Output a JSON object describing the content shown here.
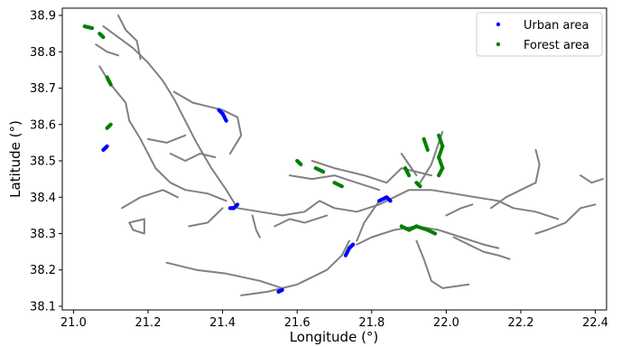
{
  "chart_data": {
    "type": "scatter",
    "title": "",
    "xlabel": "Longitude (°)",
    "ylabel": "Latitude (°)",
    "xlim": [
      20.97,
      22.43
    ],
    "ylim": [
      38.09,
      38.92
    ],
    "xticks": [
      "21.0",
      "21.2",
      "21.4",
      "21.6",
      "21.8",
      "22.0",
      "22.2",
      "22.4"
    ],
    "xtick_values": [
      21.0,
      21.2,
      21.4,
      21.6,
      21.8,
      22.0,
      22.2,
      22.4
    ],
    "yticks": [
      "38.1",
      "38.2",
      "38.3",
      "38.4",
      "38.5",
      "38.6",
      "38.7",
      "38.8",
      "38.9"
    ],
    "ytick_values": [
      38.1,
      38.2,
      38.3,
      38.4,
      38.5,
      38.6,
      38.7,
      38.8,
      38.9
    ],
    "grid": false,
    "legend_position": "top-right",
    "colors": {
      "network": "#808080",
      "urban": "#0000ff",
      "forest": "#008000"
    },
    "road_network": [
      [
        [
          21.08,
          38.87
        ],
        [
          21.12,
          38.84
        ],
        [
          21.16,
          38.81
        ],
        [
          21.2,
          38.77
        ],
        [
          21.24,
          38.72
        ],
        [
          21.27,
          38.67
        ],
        [
          21.3,
          38.61
        ],
        [
          21.33,
          38.55
        ],
        [
          21.37,
          38.48
        ],
        [
          21.41,
          38.42
        ],
        [
          21.44,
          38.37
        ],
        [
          21.5,
          38.36
        ],
        [
          21.56,
          38.35
        ],
        [
          21.62,
          38.36
        ],
        [
          21.66,
          38.39
        ],
        [
          21.7,
          38.37
        ],
        [
          21.76,
          38.36
        ],
        [
          21.82,
          38.38
        ],
        [
          21.86,
          38.4
        ],
        [
          21.9,
          38.42
        ],
        [
          21.96,
          38.42
        ],
        [
          22.02,
          38.41
        ],
        [
          22.08,
          38.4
        ],
        [
          22.14,
          38.39
        ],
        [
          22.18,
          38.37
        ],
        [
          22.24,
          38.36
        ],
        [
          22.3,
          38.34
        ]
      ],
      [
        [
          21.12,
          38.9
        ],
        [
          21.14,
          38.86
        ],
        [
          21.17,
          38.83
        ],
        [
          21.18,
          38.78
        ]
      ],
      [
        [
          21.07,
          38.76
        ],
        [
          21.1,
          38.71
        ],
        [
          21.14,
          38.66
        ],
        [
          21.15,
          38.61
        ],
        [
          21.18,
          38.56
        ],
        [
          21.2,
          38.52
        ],
        [
          21.22,
          38.48
        ],
        [
          21.26,
          38.44
        ],
        [
          21.3,
          38.42
        ],
        [
          21.36,
          38.41
        ],
        [
          21.41,
          38.39
        ]
      ],
      [
        [
          21.27,
          38.69
        ],
        [
          21.32,
          38.66
        ],
        [
          21.36,
          38.65
        ],
        [
          21.4,
          38.64
        ],
        [
          21.44,
          38.62
        ],
        [
          21.45,
          38.57
        ],
        [
          21.42,
          38.52
        ]
      ],
      [
        [
          21.13,
          38.37
        ],
        [
          21.18,
          38.4
        ],
        [
          21.24,
          38.42
        ],
        [
          21.28,
          38.4
        ]
      ],
      [
        [
          21.15,
          38.33
        ],
        [
          21.16,
          38.31
        ],
        [
          21.19,
          38.3
        ],
        [
          21.19,
          38.34
        ],
        [
          21.15,
          38.33
        ]
      ],
      [
        [
          21.4,
          38.37
        ],
        [
          21.36,
          38.33
        ],
        [
          21.31,
          38.32
        ]
      ],
      [
        [
          21.48,
          38.35
        ],
        [
          21.49,
          38.31
        ],
        [
          21.5,
          38.29
        ]
      ],
      [
        [
          21.74,
          38.28
        ],
        [
          21.72,
          38.24
        ],
        [
          21.68,
          38.2
        ],
        [
          21.6,
          38.16
        ],
        [
          21.56,
          38.15
        ],
        [
          21.52,
          38.14
        ],
        [
          21.45,
          38.13
        ]
      ],
      [
        [
          21.56,
          38.15
        ],
        [
          21.5,
          38.17
        ],
        [
          21.41,
          38.19
        ],
        [
          21.33,
          38.2
        ],
        [
          21.25,
          38.22
        ]
      ],
      [
        [
          21.76,
          38.27
        ],
        [
          21.8,
          38.29
        ],
        [
          21.86,
          38.31
        ],
        [
          21.92,
          38.32
        ],
        [
          21.98,
          38.31
        ],
        [
          22.04,
          38.29
        ],
        [
          22.1,
          38.27
        ],
        [
          22.14,
          38.26
        ]
      ],
      [
        [
          21.82,
          38.39
        ],
        [
          21.78,
          38.33
        ],
        [
          21.76,
          38.28
        ]
      ],
      [
        [
          21.64,
          38.5
        ],
        [
          21.7,
          38.48
        ],
        [
          21.78,
          38.46
        ],
        [
          21.84,
          38.44
        ],
        [
          21.88,
          38.48
        ],
        [
          21.92,
          38.47
        ],
        [
          21.96,
          38.46
        ]
      ],
      [
        [
          21.93,
          38.44
        ],
        [
          21.96,
          38.49
        ],
        [
          21.98,
          38.55
        ],
        [
          21.99,
          38.58
        ]
      ],
      [
        [
          22.12,
          38.37
        ],
        [
          22.16,
          38.4
        ],
        [
          22.2,
          38.42
        ],
        [
          22.24,
          38.44
        ],
        [
          22.25,
          38.49
        ],
        [
          22.24,
          38.53
        ]
      ],
      [
        [
          22.36,
          38.46
        ],
        [
          22.39,
          38.44
        ],
        [
          22.42,
          38.45
        ]
      ],
      [
        [
          21.92,
          38.28
        ],
        [
          21.94,
          38.23
        ],
        [
          21.96,
          38.17
        ],
        [
          21.99,
          38.15
        ],
        [
          22.06,
          38.16
        ]
      ],
      [
        [
          22.02,
          38.29
        ],
        [
          22.06,
          38.27
        ],
        [
          22.1,
          38.25
        ],
        [
          22.14,
          38.24
        ],
        [
          22.17,
          38.23
        ]
      ],
      [
        [
          22.24,
          38.3
        ],
        [
          22.27,
          38.31
        ],
        [
          22.32,
          38.33
        ],
        [
          22.36,
          38.37
        ],
        [
          22.4,
          38.38
        ]
      ],
      [
        [
          21.58,
          38.46
        ],
        [
          21.64,
          38.45
        ],
        [
          21.7,
          38.46
        ],
        [
          21.76,
          38.44
        ],
        [
          21.82,
          38.42
        ]
      ],
      [
        [
          21.26,
          38.52
        ],
        [
          21.3,
          38.5
        ],
        [
          21.34,
          38.52
        ],
        [
          21.38,
          38.51
        ]
      ],
      [
        [
          21.2,
          38.56
        ],
        [
          21.25,
          38.55
        ],
        [
          21.3,
          38.57
        ]
      ],
      [
        [
          21.54,
          38.32
        ],
        [
          21.58,
          38.34
        ],
        [
          21.62,
          38.33
        ],
        [
          21.68,
          38.35
        ]
      ],
      [
        [
          21.88,
          38.52
        ],
        [
          21.9,
          38.49
        ],
        [
          21.92,
          38.46
        ]
      ],
      [
        [
          22.0,
          38.35
        ],
        [
          22.04,
          38.37
        ],
        [
          22.07,
          38.38
        ]
      ],
      [
        [
          21.06,
          38.82
        ],
        [
          21.09,
          38.8
        ],
        [
          21.12,
          38.79
        ]
      ]
    ],
    "series": [
      {
        "name": "Urban area",
        "marker": "dot",
        "segments": [
          [
            [
              21.08,
              38.53
            ],
            [
              21.09,
              38.54
            ]
          ],
          [
            [
              21.39,
              38.64
            ],
            [
              21.4,
              38.63
            ],
            [
              21.41,
              38.61
            ]
          ],
          [
            [
              21.42,
              38.37
            ],
            [
              21.43,
              38.37
            ],
            [
              21.44,
              38.38
            ]
          ],
          [
            [
              21.55,
              38.14
            ],
            [
              21.56,
              38.145
            ]
          ],
          [
            [
              21.73,
              38.24
            ],
            [
              21.74,
              38.26
            ],
            [
              21.75,
              38.27
            ]
          ],
          [
            [
              21.82,
              38.39
            ],
            [
              21.84,
              38.4
            ],
            [
              21.85,
              38.39
            ]
          ]
        ]
      },
      {
        "name": "Forest area",
        "marker": "dot",
        "segments": [
          [
            [
              21.03,
              38.87
            ],
            [
              21.05,
              38.865
            ]
          ],
          [
            [
              21.07,
              38.85
            ],
            [
              21.08,
              38.84
            ]
          ],
          [
            [
              21.09,
              38.73
            ],
            [
              21.1,
              38.71
            ]
          ],
          [
            [
              21.09,
              38.59
            ],
            [
              21.1,
              38.6
            ]
          ],
          [
            [
              21.6,
              38.5
            ],
            [
              21.61,
              38.49
            ]
          ],
          [
            [
              21.65,
              38.48
            ],
            [
              21.67,
              38.47
            ]
          ],
          [
            [
              21.7,
              38.44
            ],
            [
              21.72,
              38.43
            ]
          ],
          [
            [
              21.89,
              38.48
            ],
            [
              21.9,
              38.46
            ]
          ],
          [
            [
              21.92,
              38.44
            ],
            [
              21.93,
              38.43
            ]
          ],
          [
            [
              21.94,
              38.56
            ],
            [
              21.95,
              38.53
            ]
          ],
          [
            [
              21.98,
              38.57
            ],
            [
              21.99,
              38.54
            ],
            [
              21.98,
              38.51
            ],
            [
              21.99,
              38.48
            ],
            [
              21.98,
              38.46
            ]
          ],
          [
            [
              21.88,
              38.32
            ],
            [
              21.9,
              38.31
            ],
            [
              21.92,
              38.32
            ],
            [
              21.95,
              38.31
            ],
            [
              21.97,
              38.3
            ]
          ]
        ]
      }
    ]
  }
}
